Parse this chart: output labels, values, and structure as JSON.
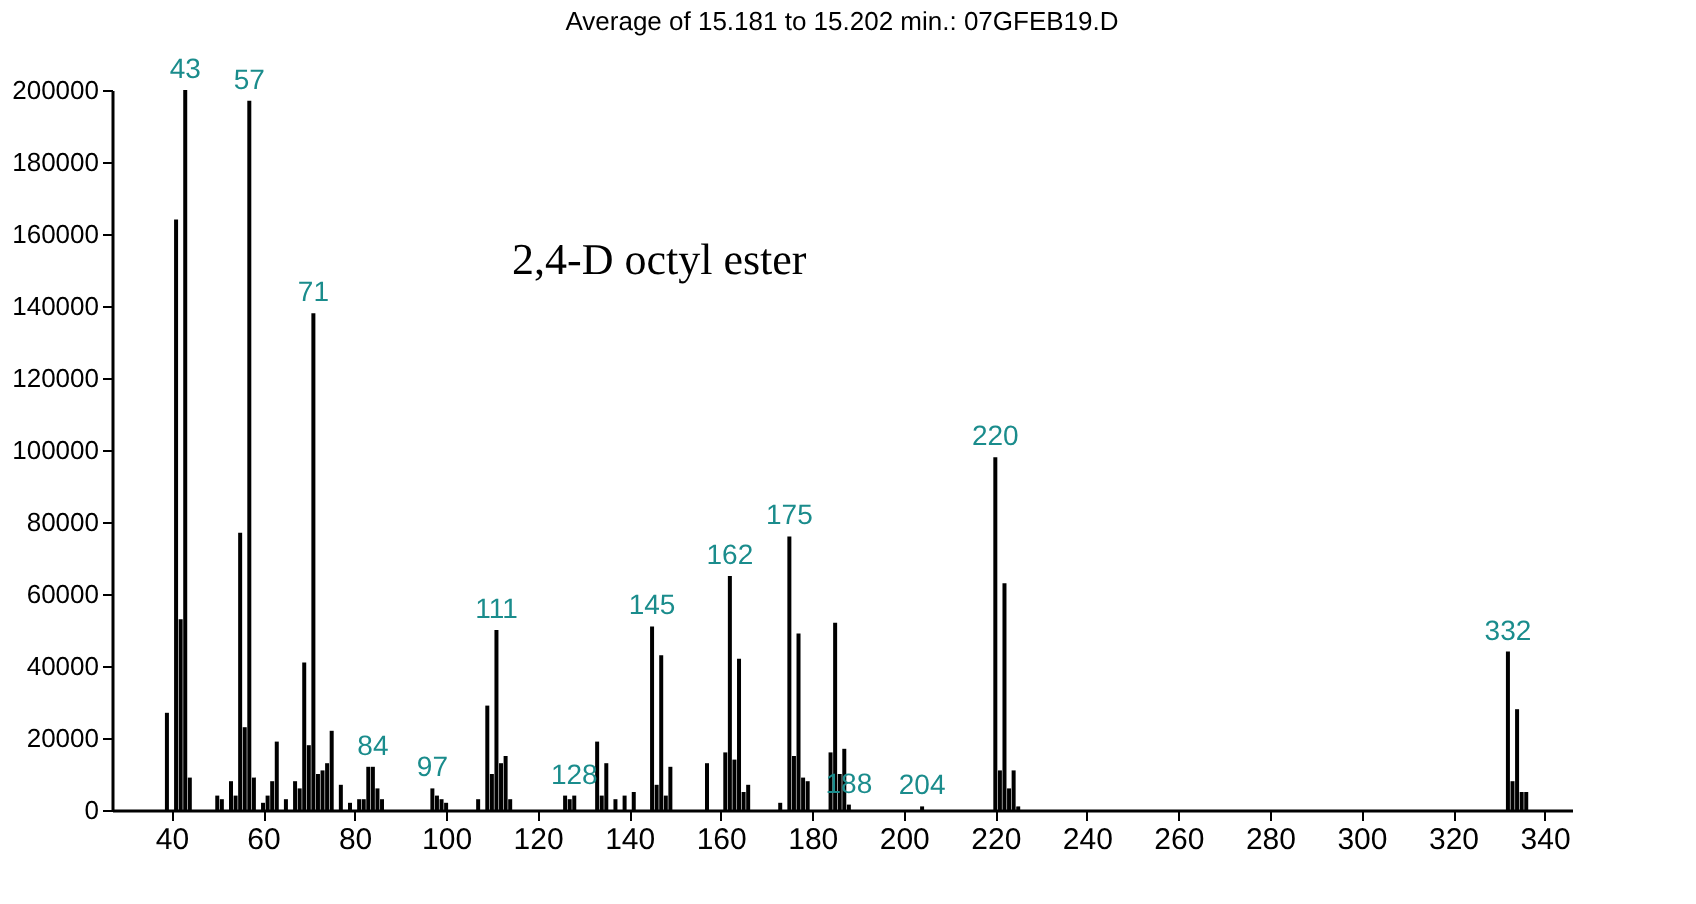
{
  "chart_data": {
    "type": "bar",
    "title": "Average of 15.181 to 15.202 min.: 07GFEB19.D",
    "x": [
      39,
      41,
      42,
      43,
      44,
      50,
      51,
      53,
      54,
      55,
      56,
      57,
      58,
      60,
      61,
      62,
      63,
      65,
      67,
      68,
      69,
      70,
      71,
      72,
      73,
      74,
      75,
      77,
      79,
      81,
      82,
      83,
      84,
      85,
      86,
      97,
      98,
      99,
      100,
      107,
      109,
      110,
      111,
      112,
      113,
      114,
      126,
      127,
      128,
      133,
      134,
      135,
      137,
      139,
      141,
      145,
      146,
      147,
      148,
      149,
      157,
      161,
      162,
      163,
      164,
      165,
      166,
      173,
      175,
      176,
      177,
      178,
      179,
      184,
      185,
      186,
      187,
      188,
      204,
      220,
      221,
      222,
      223,
      224,
      225,
      332,
      333,
      334,
      335,
      336
    ],
    "series": [
      {
        "color": "#000000",
        "values": [
          27000,
          164000,
          53000,
          200000,
          9000,
          4000,
          3000,
          8000,
          4000,
          77000,
          23000,
          197000,
          9000,
          2000,
          4000,
          8000,
          19000,
          3000,
          8000,
          6000,
          41000,
          18000,
          138000,
          10000,
          11000,
          13000,
          22000,
          7000,
          2000,
          3000,
          3000,
          12000,
          12000,
          6000,
          3000,
          6000,
          4000,
          3000,
          2000,
          3000,
          29000,
          10000,
          50000,
          13000,
          15000,
          3000,
          4000,
          3000,
          4000,
          19000,
          4000,
          13000,
          3000,
          4000,
          5000,
          51000,
          7000,
          43000,
          4000,
          12000,
          13000,
          16000,
          65000,
          14000,
          42000,
          5000,
          7000,
          2000,
          76000,
          15000,
          49000,
          9000,
          8000,
          16000,
          52000,
          10000,
          17000,
          1500,
          1000,
          98000,
          11000,
          63000,
          6000,
          11000,
          1000,
          44000,
          8000,
          28000,
          5000,
          5000
        ]
      }
    ],
    "annotations": [
      "2,4-D octyl ester",
      {
        "text": "43",
        "x": 43,
        "y": 200000
      },
      {
        "text": "57",
        "x": 57,
        "y": 197000
      },
      {
        "text": "71",
        "x": 71,
        "y": 138000
      },
      {
        "text": "84",
        "x": 84,
        "y": 12000
      },
      {
        "text": "97",
        "x": 97,
        "y": 6000
      },
      {
        "text": "111",
        "x": 111,
        "y": 50000
      },
      {
        "text": "128",
        "x": 128,
        "y": 4000
      },
      {
        "text": "145",
        "x": 145,
        "y": 51000
      },
      {
        "text": "162",
        "x": 162,
        "y": 65000
      },
      {
        "text": "175",
        "x": 175,
        "y": 76000
      },
      {
        "text": "188",
        "x": 188,
        "y": 1500
      },
      {
        "text": "204",
        "x": 204,
        "y": 1000
      },
      {
        "text": "220",
        "x": 220,
        "y": 98000
      },
      {
        "text": "332",
        "x": 332,
        "y": 44000
      }
    ],
    "xlim": [
      27,
      346
    ],
    "xticks": [
      40,
      60,
      80,
      100,
      120,
      140,
      160,
      180,
      200,
      220,
      240,
      260,
      280,
      300,
      320,
      340
    ],
    "ylim": [
      0,
      200000
    ],
    "yticks": [
      0,
      20000,
      40000,
      60000,
      80000,
      100000,
      120000,
      140000,
      160000,
      180000,
      200000
    ],
    "grid": false
  }
}
